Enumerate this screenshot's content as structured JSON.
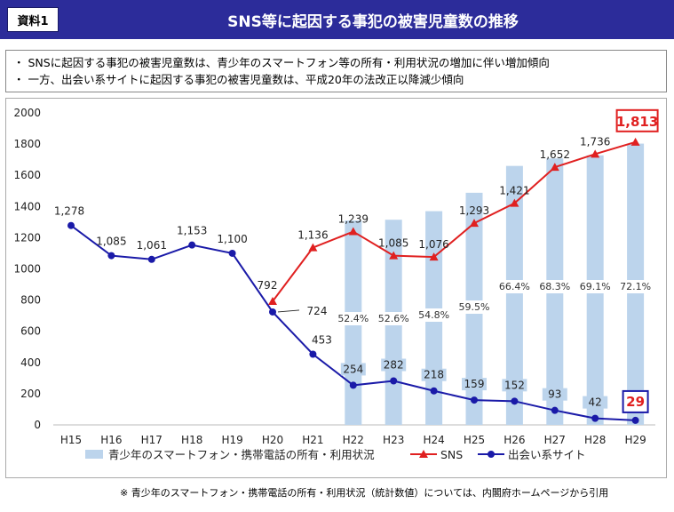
{
  "header": {
    "doc_label": "資料1",
    "title": "SNS等に起因する事犯の被害児童数の推移"
  },
  "bullets": [
    "・ SNSに起因する事犯の被害児童数は、青少年のスマートフォン等の所有・利用状況の増加に伴い増加傾向",
    "・ 一方、出会い系サイトに起因する事犯の被害児童数は、平成20年の法改正以降減少傾向"
  ],
  "footnote": "※ 青少年のスマートフォン・携帯電話の所有・利用状況（統計数値）については、内閣府ホームページから引用",
  "colors": {
    "title_bg": "#2c2c9a",
    "sns": "#e02020",
    "deai": "#1a1aa8",
    "bar": "#bcd4ec",
    "highlight": "#e02020"
  },
  "chart_data": {
    "type": "line",
    "title": "",
    "xlabel": "",
    "ylabel": "",
    "ylim": [
      0,
      2000
    ],
    "yticks": [
      0,
      200,
      400,
      600,
      800,
      1000,
      1200,
      1400,
      1600,
      1800,
      2000
    ],
    "categories": [
      "H15",
      "H16",
      "H17",
      "H18",
      "H19",
      "H20",
      "H21",
      "H22",
      "H23",
      "H24",
      "H25",
      "H26",
      "H27",
      "H28",
      "H29"
    ],
    "bars": {
      "name": "青少年のスマートフォン・携帯電話の所有・利用状況",
      "percent_labels": [
        null,
        null,
        null,
        null,
        null,
        null,
        null,
        "52.4%",
        "52.6%",
        "54.8%",
        "59.5%",
        "66.4%",
        "68.3%",
        "69.1%",
        "72.1%"
      ],
      "heights_in_axis_units": [
        null,
        null,
        null,
        null,
        null,
        null,
        null,
        1310,
        1315,
        1370,
        1488,
        1660,
        1708,
        1728,
        1803
      ]
    },
    "series": [
      {
        "name": "SNS",
        "values": [
          null,
          null,
          null,
          null,
          null,
          792,
          1136,
          1239,
          1085,
          1076,
          1293,
          1421,
          1652,
          1736,
          1813
        ],
        "labels": [
          null,
          null,
          null,
          null,
          null,
          "792",
          "1,136",
          "1,239",
          "1,085",
          "1,076",
          "1,293",
          "1,421",
          "1,652",
          "1,736",
          "1,813"
        ]
      },
      {
        "name": "出会い系サイト",
        "values": [
          1278,
          1085,
          1061,
          1153,
          1100,
          724,
          453,
          254,
          282,
          218,
          159,
          152,
          93,
          42,
          29
        ],
        "labels": [
          "1,278",
          "1,085",
          "1,061",
          "1,153",
          "1,100",
          "724",
          "453",
          "254",
          "282",
          "218",
          "159",
          "152",
          "93",
          "42",
          "29"
        ]
      }
    ],
    "highlighted_labels": [
      "1,813",
      "29"
    ],
    "legend_position": "bottom"
  }
}
